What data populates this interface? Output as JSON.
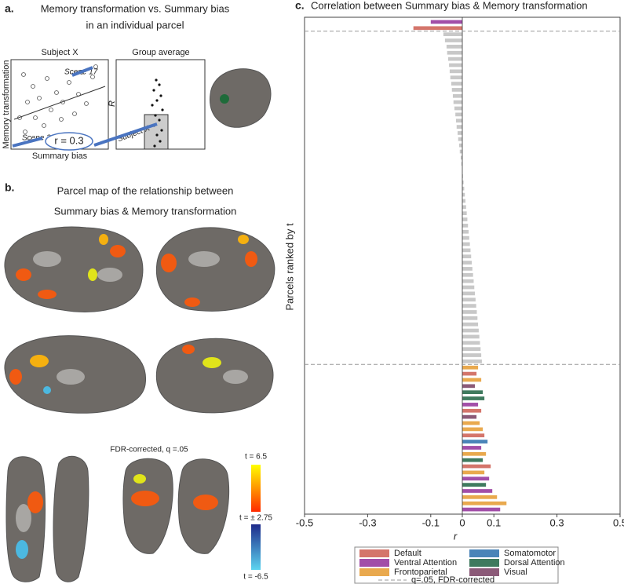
{
  "panel_a": {
    "label": "a.",
    "title_lines": [
      "Memory transformation vs. Summary bias",
      "in an individual parcel"
    ],
    "subject_title": "Subject X",
    "group_title": "Group average",
    "scene_top": "Scene 17",
    "scene_bottom": "Scene 3",
    "r_label": "r = 0.3",
    "ylabel": "Memory transformation",
    "xlabel": "Summary bias",
    "group_ylabel": "R",
    "group_point_label": "Subject X"
  },
  "panel_b": {
    "label": "b.",
    "title_lines": [
      "Parcel map of the relationship between",
      "Summary bias & Memory transformation"
    ],
    "note": "FDR-corrected, q =.05",
    "colorbar_labels": [
      "t = 6.5",
      "t = ± 2.75",
      "t = -6.5"
    ]
  },
  "chart_data": {
    "type": "barh",
    "label": "c.",
    "title": "Correlation between Summary bias & Memory transformation",
    "ylabel": "Parcels ranked by t",
    "xlabel": "r",
    "xlim": [
      -0.5,
      0.5
    ],
    "xticks": [
      -0.5,
      -0.3,
      -0.1,
      0,
      0.1,
      0.3,
      0.5
    ],
    "nonsignificant_color": "#c8c8c8",
    "values": [
      -0.1,
      -0.155,
      -0.06,
      -0.055,
      -0.05,
      -0.048,
      -0.045,
      -0.042,
      -0.04,
      -0.038,
      -0.035,
      -0.033,
      -0.03,
      -0.028,
      -0.025,
      -0.022,
      -0.02,
      -0.018,
      -0.015,
      -0.013,
      -0.01,
      -0.008,
      -0.005,
      -0.003,
      0,
      0.002,
      0.004,
      0.006,
      0.008,
      0.01,
      0.012,
      0.014,
      0.016,
      0.018,
      0.02,
      0.022,
      0.024,
      0.026,
      0.028,
      0.03,
      0.032,
      0.034,
      0.036,
      0.038,
      0.04,
      0.042,
      0.044,
      0.046,
      0.048,
      0.05,
      0.052,
      0.054,
      0.056,
      0.058,
      0.06,
      0.062,
      0.05,
      0.045,
      0.06,
      0.04,
      0.065,
      0.07,
      0.05,
      0.06,
      0.045,
      0.055,
      0.065,
      0.07,
      0.08,
      0.06,
      0.075,
      0.065,
      0.09,
      0.07,
      0.085,
      0.075,
      0.095,
      0.11,
      0.14,
      0.12
    ],
    "bar_colors": [
      "#a24ea8",
      "#d4756b",
      "#c8c8c8",
      "#c8c8c8",
      "#c8c8c8",
      "#c8c8c8",
      "#c8c8c8",
      "#c8c8c8",
      "#c8c8c8",
      "#c8c8c8",
      "#c8c8c8",
      "#c8c8c8",
      "#c8c8c8",
      "#c8c8c8",
      "#c8c8c8",
      "#c8c8c8",
      "#c8c8c8",
      "#c8c8c8",
      "#c8c8c8",
      "#c8c8c8",
      "#c8c8c8",
      "#c8c8c8",
      "#c8c8c8",
      "#c8c8c8",
      "#c8c8c8",
      "#c8c8c8",
      "#c8c8c8",
      "#c8c8c8",
      "#c8c8c8",
      "#c8c8c8",
      "#c8c8c8",
      "#c8c8c8",
      "#c8c8c8",
      "#c8c8c8",
      "#c8c8c8",
      "#c8c8c8",
      "#c8c8c8",
      "#c8c8c8",
      "#c8c8c8",
      "#c8c8c8",
      "#c8c8c8",
      "#c8c8c8",
      "#c8c8c8",
      "#c8c8c8",
      "#c8c8c8",
      "#c8c8c8",
      "#c8c8c8",
      "#c8c8c8",
      "#c8c8c8",
      "#c8c8c8",
      "#c8c8c8",
      "#c8c8c8",
      "#c8c8c8",
      "#c8c8c8",
      "#c8c8c8",
      "#c8c8c8",
      "#e9a94e",
      "#d4756b",
      "#e9a94e",
      "#8b5a78",
      "#3f7a5e",
      "#3f7a5e",
      "#a24ea8",
      "#d4756b",
      "#8b5a78",
      "#e9a94e",
      "#e9a94e",
      "#d4756b",
      "#4a84b8",
      "#a24ea8",
      "#e9a94e",
      "#3f7a5e",
      "#d4756b",
      "#e9a94e",
      "#a24ea8",
      "#3f7a5e",
      "#a24ea8",
      "#e9a94e",
      "#e9a94e",
      "#a24ea8"
    ],
    "legend": [
      {
        "name": "Default",
        "color": "#d4756b"
      },
      {
        "name": "Somatomotor",
        "color": "#4a84b8"
      },
      {
        "name": "Ventral Attention",
        "color": "#a24ea8"
      },
      {
        "name": "Dorsal Attention",
        "color": "#3f7a5e"
      },
      {
        "name": "Frontoparietal",
        "color": "#e9a94e"
      },
      {
        "name": "Visual",
        "color": "#8b5a78"
      }
    ],
    "threshold_label": "q=.05, FDR-corrected"
  }
}
